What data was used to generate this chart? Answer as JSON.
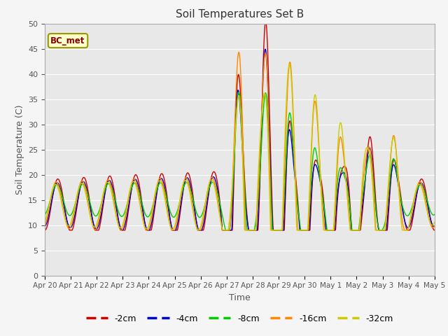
{
  "title": "Soil Temperatures Set B",
  "xlabel": "Time",
  "ylabel": "Soil Temperature (C)",
  "ylim": [
    0,
    50
  ],
  "annotation_text": "BC_met",
  "series_names": [
    "-2cm",
    "-4cm",
    "-8cm",
    "-16cm",
    "-32cm"
  ],
  "series_colors": [
    "#cc0000",
    "#0000cc",
    "#00cc00",
    "#ff8800",
    "#cccc00"
  ],
  "bg_color": "#e8e8e8",
  "grid_color": "#ffffff",
  "x_tick_labels": [
    "Apr 20",
    "Apr 21",
    "Apr 22",
    "Apr 23",
    "Apr 24",
    "Apr 25",
    "Apr 26",
    "Apr 27",
    "Apr 28",
    "Apr 29",
    "Apr 30",
    "May 1",
    "May 2",
    "May 3",
    "May 4",
    "May 5"
  ]
}
